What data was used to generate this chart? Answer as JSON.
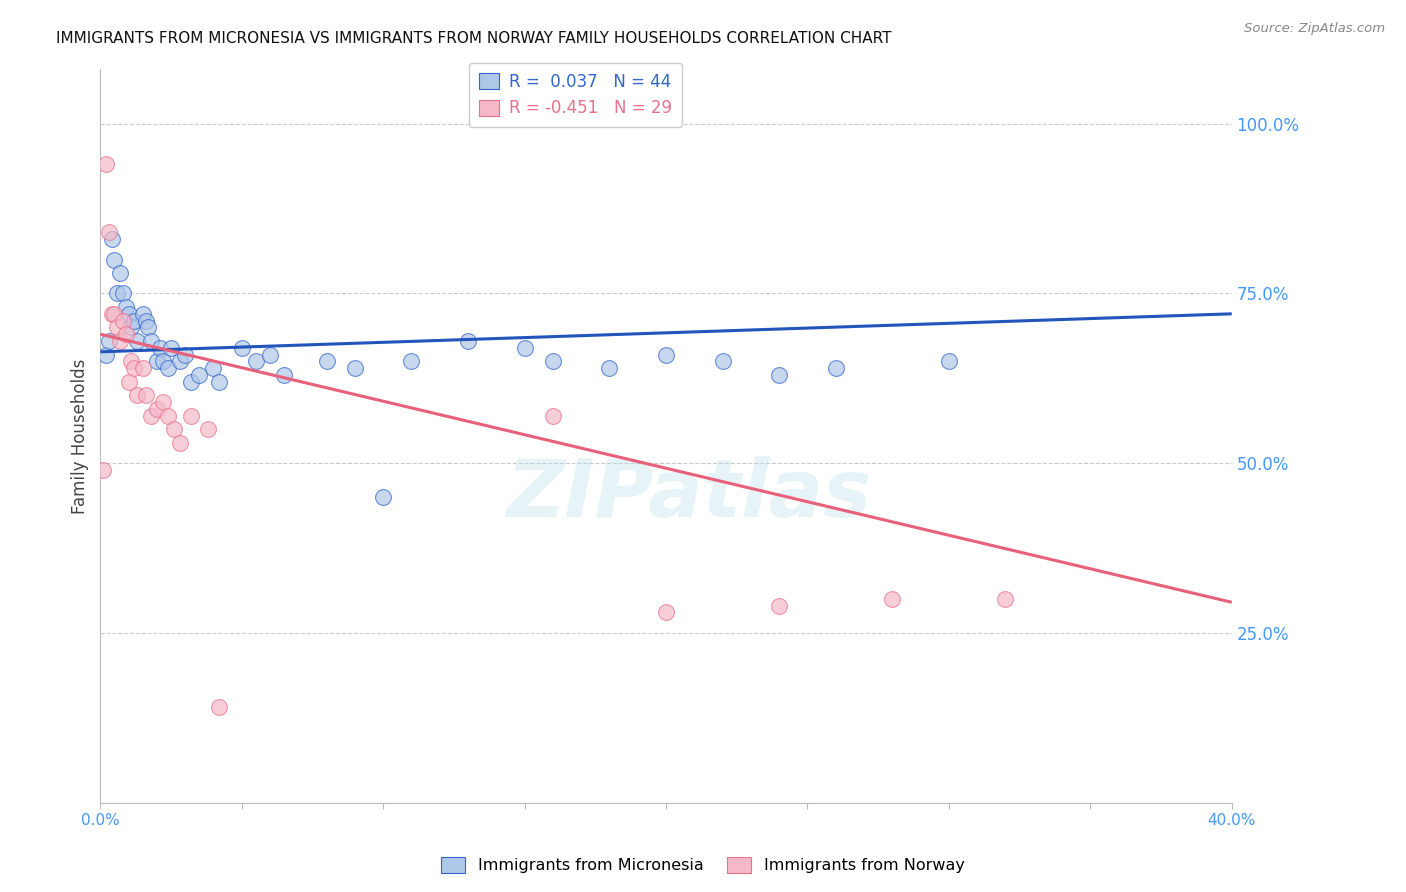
{
  "title": "IMMIGRANTS FROM MICRONESIA VS IMMIGRANTS FROM NORWAY FAMILY HOUSEHOLDS CORRELATION CHART",
  "source": "Source: ZipAtlas.com",
  "ylabel": "Family Households",
  "yticks": [
    0.0,
    0.25,
    0.5,
    0.75,
    1.0
  ],
  "ytick_labels": [
    "",
    "25.0%",
    "50.0%",
    "75.0%",
    "100.0%"
  ],
  "xlim": [
    0.0,
    0.4
  ],
  "ylim": [
    0.0,
    1.08
  ],
  "legend_blue": "R =  0.037   N = 44",
  "legend_pink": "R = -0.451   N = 29",
  "series_blue_label": "Immigrants from Micronesia",
  "series_pink_label": "Immigrants from Norway",
  "blue_fill": "#aec6e8",
  "pink_fill": "#f4b8c8",
  "blue_edge": "#3366cc",
  "pink_edge": "#e8708a",
  "blue_line": "#2255bb",
  "pink_line": "#e8607a",
  "blue_scatter_x": [
    0.002,
    0.003,
    0.004,
    0.005,
    0.006,
    0.007,
    0.008,
    0.009,
    0.01,
    0.011,
    0.012,
    0.013,
    0.015,
    0.016,
    0.017,
    0.018,
    0.02,
    0.021,
    0.022,
    0.024,
    0.025,
    0.028,
    0.03,
    0.032,
    0.035,
    0.04,
    0.042,
    0.05,
    0.055,
    0.06,
    0.065,
    0.08,
    0.09,
    0.1,
    0.11,
    0.13,
    0.15,
    0.16,
    0.18,
    0.2,
    0.22,
    0.24,
    0.26,
    0.3
  ],
  "blue_scatter_y": [
    0.66,
    0.68,
    0.83,
    0.8,
    0.75,
    0.78,
    0.75,
    0.73,
    0.72,
    0.7,
    0.71,
    0.68,
    0.72,
    0.71,
    0.7,
    0.68,
    0.65,
    0.67,
    0.65,
    0.64,
    0.67,
    0.65,
    0.66,
    0.62,
    0.63,
    0.64,
    0.62,
    0.67,
    0.65,
    0.66,
    0.63,
    0.65,
    0.64,
    0.45,
    0.65,
    0.68,
    0.67,
    0.65,
    0.64,
    0.66,
    0.65,
    0.63,
    0.64,
    0.65
  ],
  "pink_scatter_x": [
    0.001,
    0.002,
    0.003,
    0.004,
    0.005,
    0.006,
    0.007,
    0.008,
    0.009,
    0.01,
    0.011,
    0.012,
    0.013,
    0.015,
    0.016,
    0.018,
    0.02,
    0.022,
    0.024,
    0.026,
    0.028,
    0.032,
    0.038,
    0.042,
    0.16,
    0.2,
    0.24,
    0.28,
    0.32
  ],
  "pink_scatter_y": [
    0.49,
    0.94,
    0.84,
    0.72,
    0.72,
    0.7,
    0.68,
    0.71,
    0.69,
    0.62,
    0.65,
    0.64,
    0.6,
    0.64,
    0.6,
    0.57,
    0.58,
    0.59,
    0.57,
    0.55,
    0.53,
    0.57,
    0.55,
    0.14,
    0.57,
    0.28,
    0.29,
    0.3,
    0.3
  ],
  "blue_trend_x": [
    0.0,
    0.4
  ],
  "blue_trend_y": [
    0.664,
    0.72
  ],
  "pink_trend_x": [
    0.0,
    0.4
  ],
  "pink_trend_y": [
    0.69,
    0.295
  ],
  "watermark_text": "ZIPatlas",
  "background_color": "#ffffff",
  "grid_color": "#cccccc",
  "title_color": "#111111",
  "axis_tick_color": "#4499ff",
  "marker_size": 130
}
